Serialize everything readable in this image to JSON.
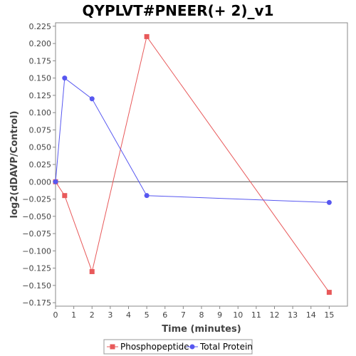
{
  "chart_data": {
    "type": "line",
    "title": "QYPLVT#PNEER(+ 2)_v1",
    "xlabel": "Time (minutes)",
    "ylabel": "log2(dDAVP/Control)",
    "xlim": [
      0,
      16
    ],
    "ylim": [
      -0.18,
      0.23
    ],
    "x_ticks": [
      0,
      1,
      2,
      3,
      4,
      5,
      6,
      7,
      8,
      9,
      10,
      11,
      12,
      13,
      14,
      15
    ],
    "y_ticks": [
      -0.175,
      -0.15,
      -0.125,
      -0.1,
      -0.075,
      -0.05,
      -0.025,
      0.0,
      0.025,
      0.05,
      0.075,
      0.1,
      0.125,
      0.15,
      0.175,
      0.2,
      0.225
    ],
    "y_tick_labels": [
      "−0.175",
      "−0.150",
      "−0.125",
      "−0.100",
      "−0.075",
      "−0.050",
      "−0.025",
      "0.000",
      "0.025",
      "0.050",
      "0.075",
      "0.100",
      "0.125",
      "0.150",
      "0.175",
      "0.200",
      "0.225"
    ],
    "zero_line": true,
    "grid": false,
    "legend_position": "bottom",
    "series": [
      {
        "name": "Phosphopeptide",
        "color": "#e8595a",
        "marker": "square",
        "x": [
          0,
          0.5,
          2,
          5,
          15
        ],
        "y": [
          0.0,
          -0.02,
          -0.13,
          0.21,
          -0.16
        ]
      },
      {
        "name": "Total Protein",
        "color": "#5757f0",
        "marker": "circle",
        "x": [
          0,
          0.5,
          2,
          5,
          15
        ],
        "y": [
          0.0,
          0.15,
          0.12,
          -0.02,
          -0.03
        ]
      }
    ]
  }
}
